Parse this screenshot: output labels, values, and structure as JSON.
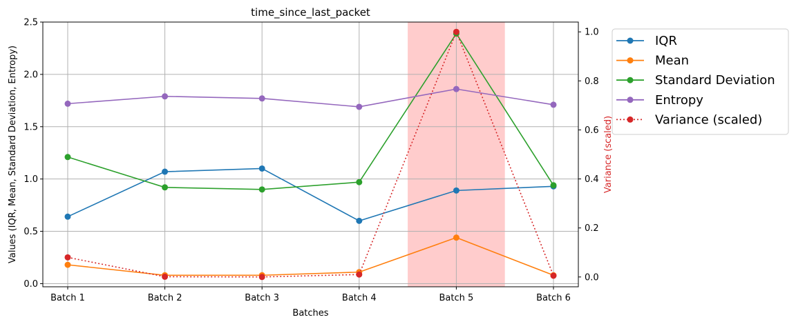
{
  "chart_data": {
    "type": "line",
    "title": "time_since_last_packet",
    "xlabel": "Batches",
    "ylabel": "Values (IQR, Mean, Standard Deviation, Entropy)",
    "y2label": "Variance (scaled)",
    "categories": [
      "Batch 1",
      "Batch 2",
      "Batch 3",
      "Batch 4",
      "Batch 5",
      "Batch 6"
    ],
    "ylim": [
      -0.03,
      2.5
    ],
    "y2lim": [
      -0.04,
      1.04
    ],
    "yticks": [
      "0.0",
      "0.5",
      "1.0",
      "1.5",
      "2.0",
      "2.5"
    ],
    "y2ticks": [
      "0.0",
      "0.2",
      "0.4",
      "0.6",
      "0.8",
      "1.0"
    ],
    "grid": true,
    "legend_position": "outside-right",
    "highlight": {
      "category": "Batch 5",
      "color": "#ff9999"
    },
    "series": [
      {
        "name": "IQR",
        "color": "#1f77b4",
        "style": "solid",
        "axis": "left",
        "values": [
          0.64,
          1.07,
          1.1,
          0.6,
          0.89,
          0.93
        ]
      },
      {
        "name": "Mean",
        "color": "#ff7f0e",
        "style": "solid",
        "axis": "left",
        "values": [
          0.18,
          0.08,
          0.08,
          0.11,
          0.44,
          0.08
        ]
      },
      {
        "name": "Standard Deviation",
        "color": "#2ca02c",
        "style": "solid",
        "axis": "left",
        "values": [
          1.21,
          0.92,
          0.9,
          0.97,
          2.39,
          0.94
        ]
      },
      {
        "name": "Entropy",
        "color": "#9467bd",
        "style": "solid",
        "axis": "left",
        "values": [
          1.72,
          1.79,
          1.77,
          1.69,
          1.86,
          1.71
        ]
      },
      {
        "name": "Variance (scaled)",
        "color": "#d62728",
        "style": "dotted",
        "axis": "right",
        "values": [
          0.08,
          0.001,
          0.0,
          0.01,
          1.0,
          0.005
        ]
      }
    ]
  }
}
